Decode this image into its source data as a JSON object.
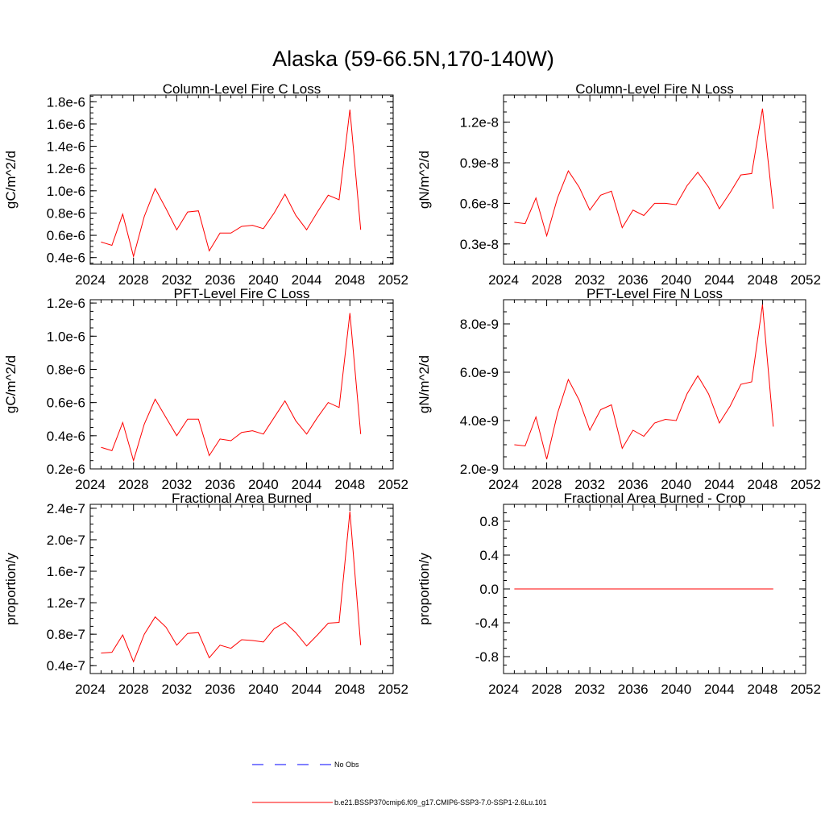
{
  "main_title": "Alaska (59-66.5N,170-140W)",
  "colors": {
    "model": "#ff0000",
    "obs": "#0000ff",
    "axis": "#000000"
  },
  "legend": {
    "obs_label": "No Obs",
    "model_label": "b.e21.BSSP370cmip6.f09_g17.CMIP6-SSP3-7.0-SSP1-2.6Lu.101"
  },
  "chart_data": [
    {
      "type": "line",
      "title": "Column-Level Fire C Loss",
      "ylabel": "gC/m^2/d",
      "xlim": [
        2024,
        2052
      ],
      "xticks": [
        "2024",
        "2028",
        "2032",
        "2036",
        "2040",
        "2044",
        "2048",
        "2052"
      ],
      "ylim": [
        3.4e-07,
        1.86e-06
      ],
      "yticks": [
        4e-07,
        6e-07,
        8e-07,
        1e-06,
        1.2e-06,
        1.4e-06,
        1.6e-06,
        1.8e-06
      ],
      "yticklabels": [
        "0.4e-6",
        "0.6e-6",
        "0.8e-6",
        "1.0e-6",
        "1.2e-6",
        "1.4e-6",
        "1.6e-6",
        "1.8e-6"
      ],
      "x": [
        2025,
        2026,
        2027,
        2028,
        2029,
        2030,
        2031,
        2032,
        2033,
        2034,
        2035,
        2036,
        2037,
        2038,
        2039,
        2040,
        2041,
        2042,
        2043,
        2044,
        2045,
        2046,
        2047,
        2048,
        2049
      ],
      "series": [
        {
          "values": [
            5.4e-07,
            5.1e-07,
            7.9e-07,
            4.1e-07,
            7.7e-07,
            1.02e-06,
            8.4e-07,
            6.5e-07,
            8.1e-07,
            8.2e-07,
            4.6e-07,
            6.2e-07,
            6.2e-07,
            6.8e-07,
            6.9e-07,
            6.6e-07,
            8e-07,
            9.7e-07,
            7.8e-07,
            6.5e-07,
            8.1e-07,
            9.6e-07,
            9.2e-07,
            1.73e-06,
            6.5e-07
          ]
        }
      ]
    },
    {
      "type": "line",
      "title": "Column-Level Fire N Loss",
      "ylabel": "gN/m^2/d",
      "xlim": [
        2024,
        2052
      ],
      "xticks": [
        "2024",
        "2028",
        "2032",
        "2036",
        "2040",
        "2044",
        "2048",
        "2052"
      ],
      "ylim": [
        1.5e-09,
        1.4e-08
      ],
      "yticks": [
        3e-09,
        6e-09,
        9e-09,
        1.2e-08
      ],
      "yticklabels": [
        "0.3e-8",
        "0.6e-8",
        "0.9e-8",
        "1.2e-8"
      ],
      "x": [
        2025,
        2026,
        2027,
        2028,
        2029,
        2030,
        2031,
        2032,
        2033,
        2034,
        2035,
        2036,
        2037,
        2038,
        2039,
        2040,
        2041,
        2042,
        2043,
        2044,
        2045,
        2046,
        2047,
        2048,
        2049
      ],
      "series": [
        {
          "values": [
            4.6e-09,
            4.5e-09,
            6.4e-09,
            3.6e-09,
            6.4e-09,
            8.4e-09,
            7.2e-09,
            5.5e-09,
            6.6e-09,
            6.9e-09,
            4.2e-09,
            5.5e-09,
            5.1e-09,
            6e-09,
            6e-09,
            5.9e-09,
            7.3e-09,
            8.3e-09,
            7.2e-09,
            5.6e-09,
            6.8e-09,
            8.1e-09,
            8.2e-09,
            1.3e-08,
            5.6e-09
          ]
        }
      ]
    },
    {
      "type": "line",
      "title": "PFT-Level Fire C Loss",
      "ylabel": "gC/m^2/d",
      "xlim": [
        2024,
        2052
      ],
      "xticks": [
        "2024",
        "2028",
        "2032",
        "2036",
        "2040",
        "2044",
        "2048",
        "2052"
      ],
      "ylim": [
        2e-07,
        1.22e-06
      ],
      "yticks": [
        2e-07,
        4e-07,
        6e-07,
        8e-07,
        1e-06,
        1.2e-06
      ],
      "yticklabels": [
        "0.2e-6",
        "0.4e-6",
        "0.6e-6",
        "0.8e-6",
        "1.0e-6",
        "1.2e-6"
      ],
      "x": [
        2025,
        2026,
        2027,
        2028,
        2029,
        2030,
        2031,
        2032,
        2033,
        2034,
        2035,
        2036,
        2037,
        2038,
        2039,
        2040,
        2041,
        2042,
        2043,
        2044,
        2045,
        2046,
        2047,
        2048,
        2049
      ],
      "series": [
        {
          "values": [
            3.3e-07,
            3.1e-07,
            4.8e-07,
            2.5e-07,
            4.7e-07,
            6.2e-07,
            5.1e-07,
            4e-07,
            5e-07,
            5e-07,
            2.8e-07,
            3.8e-07,
            3.7e-07,
            4.2e-07,
            4.3e-07,
            4.1e-07,
            5.1e-07,
            6.1e-07,
            4.9e-07,
            4.1e-07,
            5.1e-07,
            6e-07,
            5.7e-07,
            1.14e-06,
            4.1e-07
          ]
        }
      ]
    },
    {
      "type": "line",
      "title": "PFT-Level Fire N Loss",
      "ylabel": "gN/m^2/d",
      "xlim": [
        2024,
        2052
      ],
      "xticks": [
        "2024",
        "2028",
        "2032",
        "2036",
        "2040",
        "2044",
        "2048",
        "2052"
      ],
      "ylim": [
        2e-09,
        9e-09
      ],
      "yticks": [
        2e-09,
        4e-09,
        6e-09,
        8e-09
      ],
      "yticklabels": [
        "2.0e-9",
        "4.0e-9",
        "6.0e-9",
        "8.0e-9"
      ],
      "x": [
        2025,
        2026,
        2027,
        2028,
        2029,
        2030,
        2031,
        2032,
        2033,
        2034,
        2035,
        2036,
        2037,
        2038,
        2039,
        2040,
        2041,
        2042,
        2043,
        2044,
        2045,
        2046,
        2047,
        2048,
        2049
      ],
      "series": [
        {
          "values": [
            3e-09,
            2.95e-09,
            4.15e-09,
            2.4e-09,
            4.3e-09,
            5.7e-09,
            4.85e-09,
            3.6e-09,
            4.45e-09,
            4.65e-09,
            2.85e-09,
            3.6e-09,
            3.35e-09,
            3.9e-09,
            4.05e-09,
            4e-09,
            5.1e-09,
            5.85e-09,
            5.1e-09,
            3.9e-09,
            4.6e-09,
            5.5e-09,
            5.6e-09,
            8.8e-09,
            3.75e-09
          ]
        }
      ]
    },
    {
      "type": "line",
      "title": "Fractional Area Burned",
      "ylabel": "proportion/y",
      "xlim": [
        2024,
        2052
      ],
      "xticks": [
        "2024",
        "2028",
        "2032",
        "2036",
        "2040",
        "2044",
        "2048",
        "2052"
      ],
      "ylim": [
        3e-08,
        2.45e-07
      ],
      "yticks": [
        4e-08,
        8e-08,
        1.2e-07,
        1.6e-07,
        2e-07,
        2.4e-07
      ],
      "yticklabels": [
        "0.4e-7",
        "0.8e-7",
        "1.2e-7",
        "1.6e-7",
        "2.0e-7",
        "2.4e-7"
      ],
      "x": [
        2025,
        2026,
        2027,
        2028,
        2029,
        2030,
        2031,
        2032,
        2033,
        2034,
        2035,
        2036,
        2037,
        2038,
        2039,
        2040,
        2041,
        2042,
        2043,
        2044,
        2045,
        2046,
        2047,
        2048,
        2049
      ],
      "series": [
        {
          "values": [
            5.6e-08,
            5.7e-08,
            7.9e-08,
            4.5e-08,
            8e-08,
            1.02e-07,
            8.9e-08,
            6.6e-08,
            8.1e-08,
            8.2e-08,
            5e-08,
            6.6e-08,
            6.2e-08,
            7.3e-08,
            7.2e-08,
            7e-08,
            8.7e-08,
            9.5e-08,
            8.2e-08,
            6.5e-08,
            7.9e-08,
            9.4e-08,
            9.5e-08,
            2.36e-07,
            6.6e-08
          ]
        }
      ]
    },
    {
      "type": "line",
      "title": "Fractional Area Burned - Crop",
      "ylabel": "proportion/y",
      "xlim": [
        2024,
        2052
      ],
      "xticks": [
        "2024",
        "2028",
        "2032",
        "2036",
        "2040",
        "2044",
        "2048",
        "2052"
      ],
      "ylim": [
        -1.0,
        1.0
      ],
      "yticks": [
        -0.8,
        -0.4,
        0.0,
        0.4,
        0.8
      ],
      "yticklabels": [
        "-0.8",
        "-0.4",
        "0.0",
        "0.4",
        "0.8"
      ],
      "x": [
        2025,
        2026,
        2027,
        2028,
        2029,
        2030,
        2031,
        2032,
        2033,
        2034,
        2035,
        2036,
        2037,
        2038,
        2039,
        2040,
        2041,
        2042,
        2043,
        2044,
        2045,
        2046,
        2047,
        2048,
        2049
      ],
      "series": [
        {
          "values": [
            0,
            0,
            0,
            0,
            0,
            0,
            0,
            0,
            0,
            0,
            0,
            0,
            0,
            0,
            0,
            0,
            0,
            0,
            0,
            0,
            0,
            0,
            0,
            0,
            0
          ]
        }
      ]
    }
  ]
}
